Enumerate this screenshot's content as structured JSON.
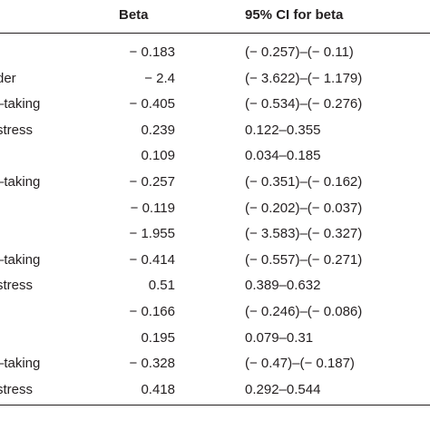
{
  "header": {
    "beta": "Beta",
    "ci": "95% CI for beta"
  },
  "rows": [
    {
      "label": "",
      "beta": "− 0.183",
      "ci": "(− 0.257)–(− 0.11)"
    },
    {
      "label": " der",
      "beta": "− 2.4",
      "ci": "(− 3.622)–(− 1.179)"
    },
    {
      "label": "–taking",
      "beta": "− 0.405",
      "ci": "(− 0.534)–(− 0.276)"
    },
    {
      "label": "stress",
      "beta": "0.239",
      "ci": "0.122–0.355"
    },
    {
      "label": "",
      "beta": "0.109",
      "ci": "0.034–0.185"
    },
    {
      "label": "–taking",
      "beta": "− 0.257",
      "ci": "(− 0.351)–(− 0.162)"
    },
    {
      "label": "",
      "beta": "− 0.119",
      "ci": "(− 0.202)–(− 0.037)"
    },
    {
      "label": "",
      "beta": "− 1.955",
      "ci": "(− 3.583)–(− 0.327)"
    },
    {
      "label": "–taking",
      "beta": "− 0.414",
      "ci": "(− 0.557)–(− 0.271)"
    },
    {
      "label": "stress",
      "beta": "0.51",
      "ci": "0.389–0.632"
    },
    {
      "label": "",
      "beta": "− 0.166",
      "ci": "(− 0.246)–(− 0.086)"
    },
    {
      "label": "",
      "beta": "0.195",
      "ci": "0.079–0.31"
    },
    {
      "label": "–taking",
      "beta": "− 0.328",
      "ci": "(− 0.47)–(− 0.187)"
    },
    {
      "label": "stress",
      "beta": "0.418",
      "ci": "0.292–0.544"
    }
  ]
}
